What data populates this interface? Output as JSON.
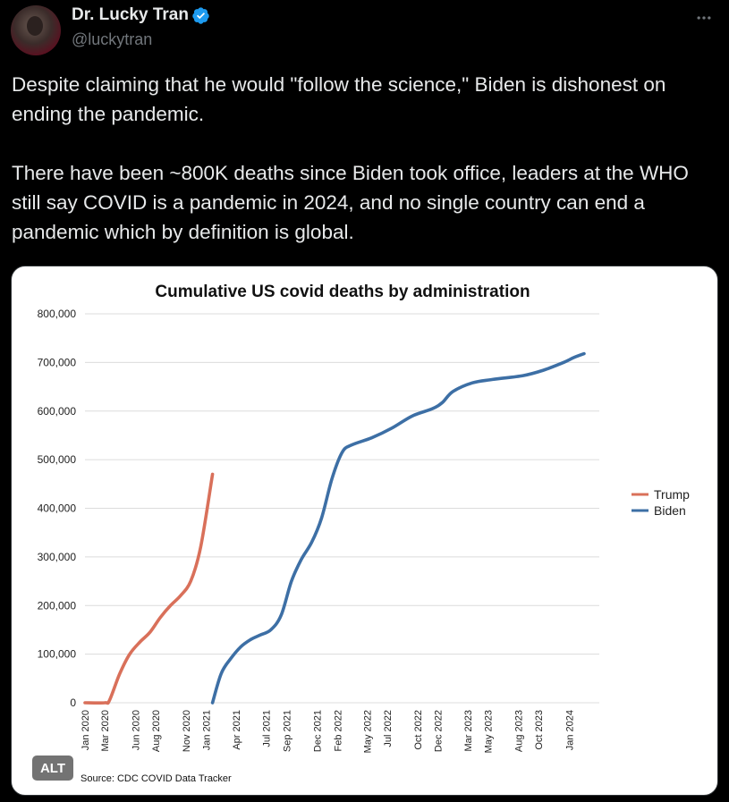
{
  "tweet": {
    "author_name": "Dr. Lucky Tran",
    "handle": "@luckytran",
    "text_p1": "Despite claiming that he would \"follow the science,\" Biden is dishonest on ending the pandemic.",
    "text_p2": "There have been ~800K deaths since Biden took office, leaders at the WHO still say COVID is a pandemic in 2024, and no single country can end a pandemic which by definition is global.",
    "verified_icon": "verified-badge-icon",
    "more_icon": "more-options-icon",
    "alt_label": "ALT"
  },
  "colors": {
    "trump": "#d9705a",
    "biden": "#3d6fa5",
    "verified": "#1d9bf0"
  },
  "chart_data": {
    "type": "line",
    "title": "Cumulative US covid deaths by administration",
    "source": "Source: CDC COVID Data Tracker",
    "ylim": [
      0,
      800000
    ],
    "y_ticks": [
      "0",
      "100,000",
      "200,000",
      "300,000",
      "400,000",
      "500,000",
      "600,000",
      "700,000",
      "800,000"
    ],
    "x_ticks": [
      "Jan 2020",
      "Mar 2020",
      "Jun 2020",
      "Aug 2020",
      "Nov 2020",
      "Jan 2021",
      "Apr 2021",
      "Jul 2021",
      "Sep 2021",
      "Dec 2021",
      "Feb 2022",
      "May 2022",
      "Jul 2022",
      "Oct 2022",
      "Dec 2022",
      "Mar 2023",
      "May 2023",
      "Aug 2023",
      "Oct 2023",
      "Jan 2024"
    ],
    "grid": true,
    "legend_position": "right",
    "series": [
      {
        "name": "Trump",
        "x": [
          "2020-01-01",
          "2020-03-01",
          "2020-03-15",
          "2020-04-15",
          "2020-05-15",
          "2020-06-15",
          "2020-07-15",
          "2020-08-15",
          "2020-09-15",
          "2020-10-15",
          "2020-11-15",
          "2020-12-15",
          "2021-01-20"
        ],
        "y": [
          0,
          0,
          5000,
          60000,
          100000,
          125000,
          145000,
          175000,
          200000,
          220000,
          250000,
          320000,
          470000
        ]
      },
      {
        "name": "Biden",
        "x": [
          "2021-01-20",
          "2021-02-15",
          "2021-03-15",
          "2021-04-15",
          "2021-05-15",
          "2021-06-15",
          "2021-07-15",
          "2021-08-15",
          "2021-09-15",
          "2021-10-15",
          "2021-11-15",
          "2021-12-15",
          "2022-01-15",
          "2022-02-15",
          "2022-03-15",
          "2022-05-15",
          "2022-07-15",
          "2022-09-15",
          "2022-11-15",
          "2022-12-15",
          "2023-01-15",
          "2023-03-15",
          "2023-05-15",
          "2023-08-15",
          "2023-10-15",
          "2023-12-15",
          "2024-01-15",
          "2024-02-15"
        ],
        "y": [
          0,
          60000,
          90000,
          115000,
          130000,
          140000,
          150000,
          180000,
          250000,
          295000,
          330000,
          380000,
          460000,
          515000,
          530000,
          545000,
          565000,
          590000,
          605000,
          618000,
          640000,
          658000,
          665000,
          673000,
          684000,
          700000,
          710000,
          718000
        ]
      }
    ]
  }
}
